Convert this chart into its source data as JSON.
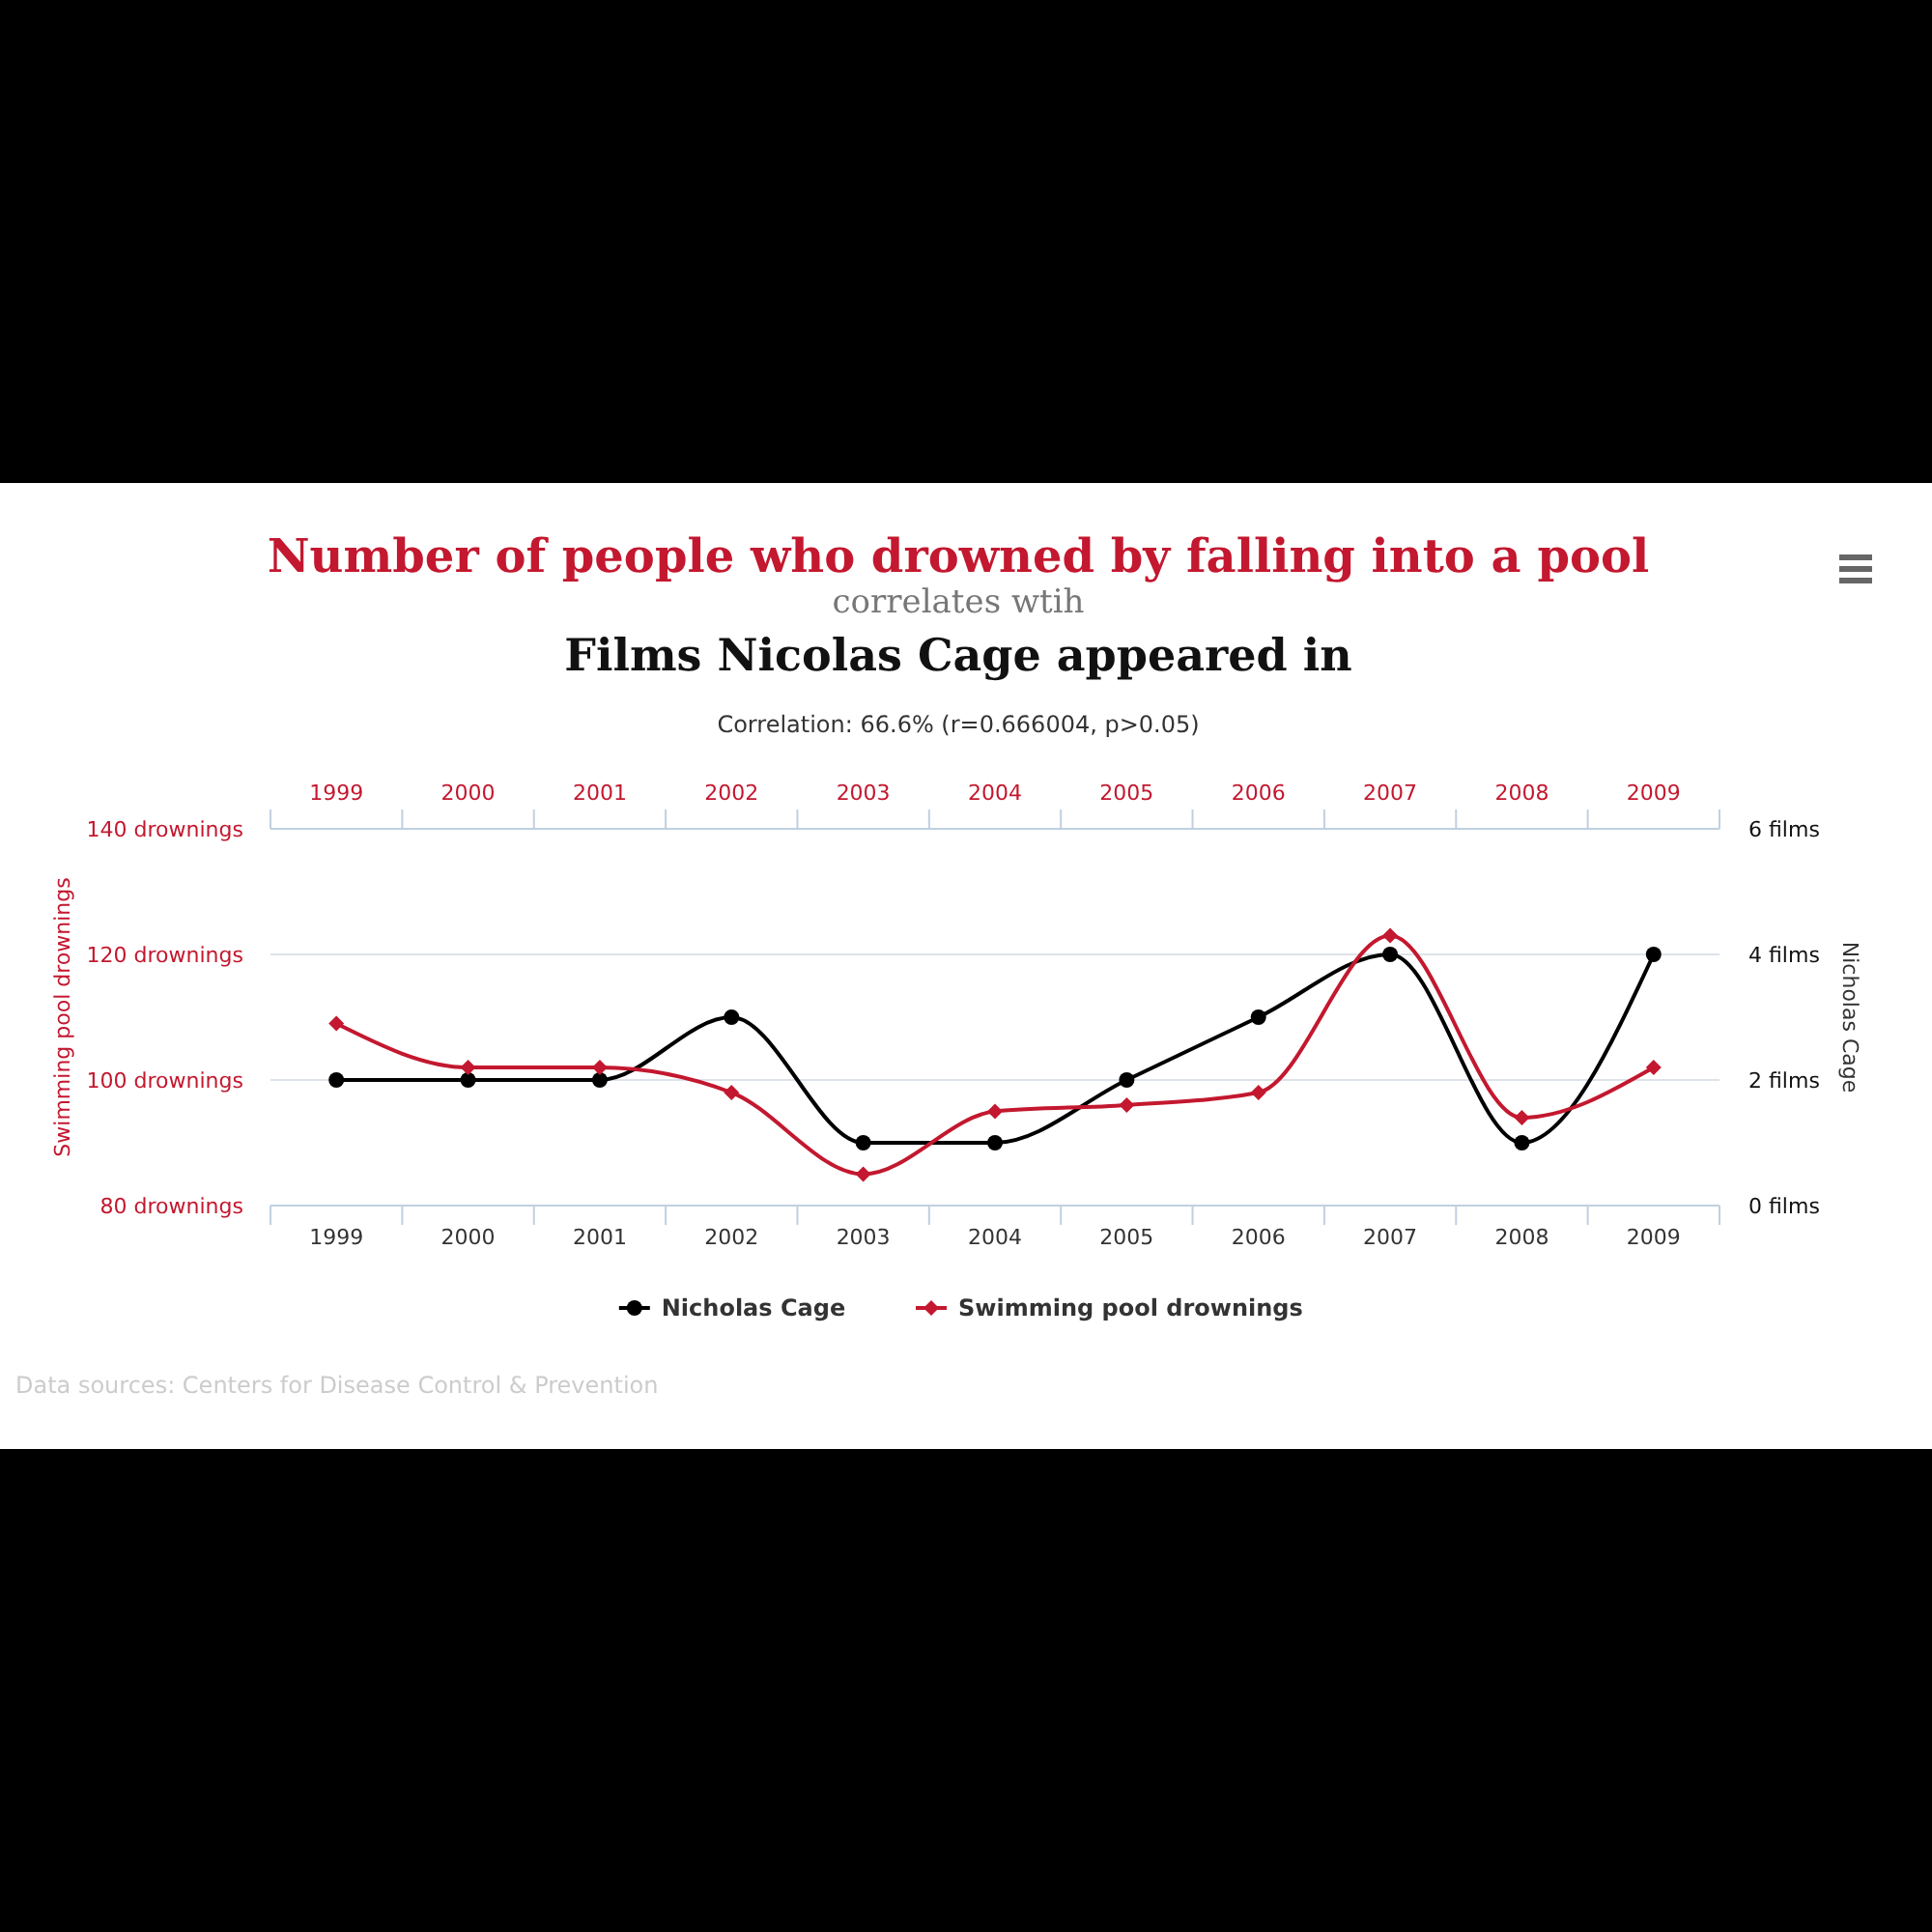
{
  "chart_data": {
    "type": "line",
    "title": "Number of people who drowned by falling into a pool",
    "subtitle": "correlates wtih",
    "annotations": [
      "Films Nicolas Cage appeared in",
      "Correlation: 66.6% (r=0.666004, p>0.05)",
      "Data sources: Centers for Disease Control & Prevention"
    ],
    "ylabel": "Swimming pool drownings",
    "y2label": "Nicholas Cage",
    "categories": [
      "1999",
      "2000",
      "2001",
      "2002",
      "2003",
      "2004",
      "2005",
      "2006",
      "2007",
      "2008",
      "2009"
    ],
    "series": [
      {
        "name": "Nicholas Cage",
        "color": "#000000",
        "axis": "y2",
        "marker": "circle",
        "values": [
          2,
          2,
          2,
          3,
          1,
          1,
          2,
          3,
          4,
          1,
          4
        ]
      },
      {
        "name": "Swimming pool drownings",
        "color": "#c3182f",
        "marker": "diamond",
        "values": [
          109,
          102,
          102,
          98,
          85,
          95,
          96,
          98,
          123,
          94,
          102
        ]
      }
    ],
    "ylim": [
      80,
      140
    ],
    "yticks": [
      {
        "value": 80,
        "label": "80 drownings"
      },
      {
        "value": 100,
        "label": "100 drownings"
      },
      {
        "value": 120,
        "label": "120 drownings"
      },
      {
        "value": 140,
        "label": "140 drownings"
      }
    ],
    "y2lim": [
      0,
      6
    ],
    "y2ticks": [
      {
        "value": 0,
        "label": "0 films"
      },
      {
        "value": 2,
        "label": "2 films"
      },
      {
        "value": 4,
        "label": "4 films"
      },
      {
        "value": 6,
        "label": "6 films"
      }
    ],
    "grid": "y",
    "legend": "bottom"
  }
}
